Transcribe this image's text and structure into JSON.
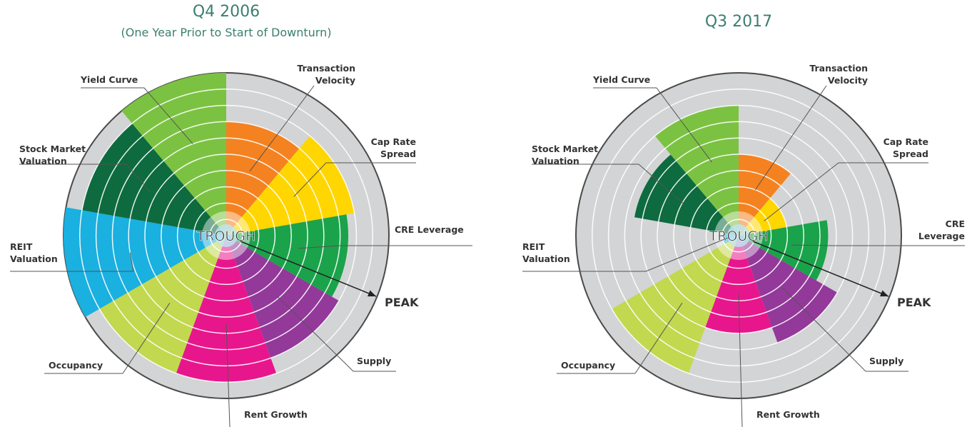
{
  "chart_data": [
    {
      "type": "polar-area",
      "title": "Q4 2006",
      "subtitle": "(One Year Prior to Start of Downturn)",
      "categories": [
        "Transaction Velocity",
        "Cap Rate Spread",
        "CRE Leverage",
        "Supply",
        "Rent Growth",
        "Occupancy",
        "REIT Valuation",
        "Stock Market Valuation",
        "Yield Curve"
      ],
      "values": [
        7,
        8,
        7.5,
        8,
        9,
        9,
        10,
        9,
        10
      ],
      "colors": [
        "#f58220",
        "#ffd600",
        "#1aa34a",
        "#93399a",
        "#e8168c",
        "#c2d84e",
        "#1ab0e0",
        "#0d6b3f",
        "#7cc242"
      ],
      "rlim": [
        0,
        10
      ],
      "rticks": [
        1,
        2,
        3,
        4,
        5,
        6,
        7,
        8,
        9
      ],
      "annotations": [
        "TROUGH",
        "PEAK"
      ]
    },
    {
      "type": "polar-area",
      "title": "Q3 2017",
      "categories": [
        "Transaction Velocity",
        "Cap Rate Spread",
        "CRE Leverage",
        "Supply",
        "Rent Growth",
        "Occupancy",
        "REIT Valuation",
        "Stock Market Valuation",
        "Yield Curve"
      ],
      "values": [
        5,
        3,
        5.5,
        7,
        6,
        9,
        1,
        6.5,
        8
      ],
      "colors": [
        "#f58220",
        "#ffd600",
        "#1aa34a",
        "#93399a",
        "#e8168c",
        "#c2d84e",
        "#1ab0e0",
        "#0d6b3f",
        "#7cc242"
      ],
      "rlim": [
        0,
        10
      ],
      "rticks": [
        1,
        2,
        3,
        4,
        5,
        6,
        7,
        8,
        9
      ],
      "annotations": [
        "TROUGH",
        "PEAK"
      ]
    }
  ]
}
